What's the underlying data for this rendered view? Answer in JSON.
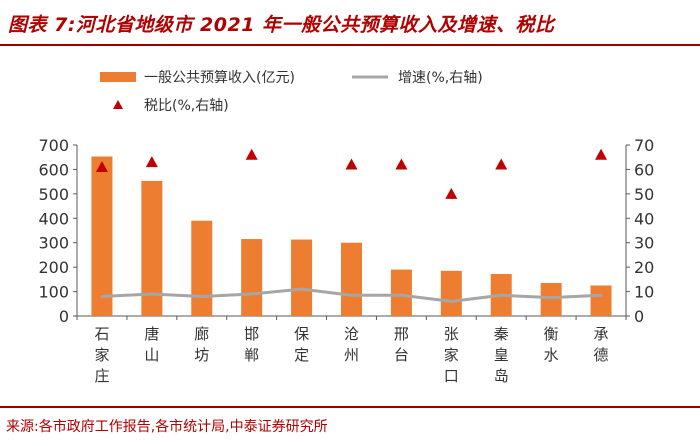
{
  "title": "图表 7:河北省地级市 2021 年一般公共预算收入及增速、税比",
  "source": "来源:各市政府工作报告,各市统计局,中泰证券研究所",
  "colors": {
    "title": "#b00000",
    "bar": "#ed7d31",
    "line": "#a6a6a6",
    "marker": "#c00000",
    "axis": "#595959",
    "text": "#333333"
  },
  "chart_data": {
    "type": "bar",
    "title": "河北省地级市 2021 年一般公共预算收入及增速、税比",
    "categories": [
      "石家庄",
      "唐山",
      "廊坊",
      "邯郸",
      "保定",
      "沧州",
      "邢台",
      "张家口",
      "秦皇岛",
      "衡水",
      "承德"
    ],
    "series": [
      {
        "name": "一般公共预算收入(亿元)",
        "kind": "bar",
        "axis": "left",
        "values": [
          653,
          553,
          390,
          315,
          313,
          300,
          190,
          185,
          172,
          135,
          125
        ]
      },
      {
        "name": "增速(%,右轴)",
        "kind": "line",
        "axis": "right",
        "values": [
          8.0,
          9.0,
          8.0,
          9.0,
          11.0,
          8.5,
          8.5,
          6.0,
          8.5,
          7.5,
          8.5
        ]
      },
      {
        "name": "税比(%,右轴)",
        "kind": "marker",
        "axis": "right",
        "values": [
          61,
          63,
          null,
          66,
          null,
          62,
          62,
          50,
          62,
          null,
          66
        ]
      }
    ],
    "ylim_left": [
      0,
      700
    ],
    "yticks_left": [
      0,
      100,
      200,
      300,
      400,
      500,
      600,
      700
    ],
    "ylim_right": [
      0,
      70
    ],
    "yticks_right": [
      0,
      10,
      20,
      30,
      40,
      50,
      60,
      70
    ],
    "legend": "top-left",
    "grid": false
  }
}
